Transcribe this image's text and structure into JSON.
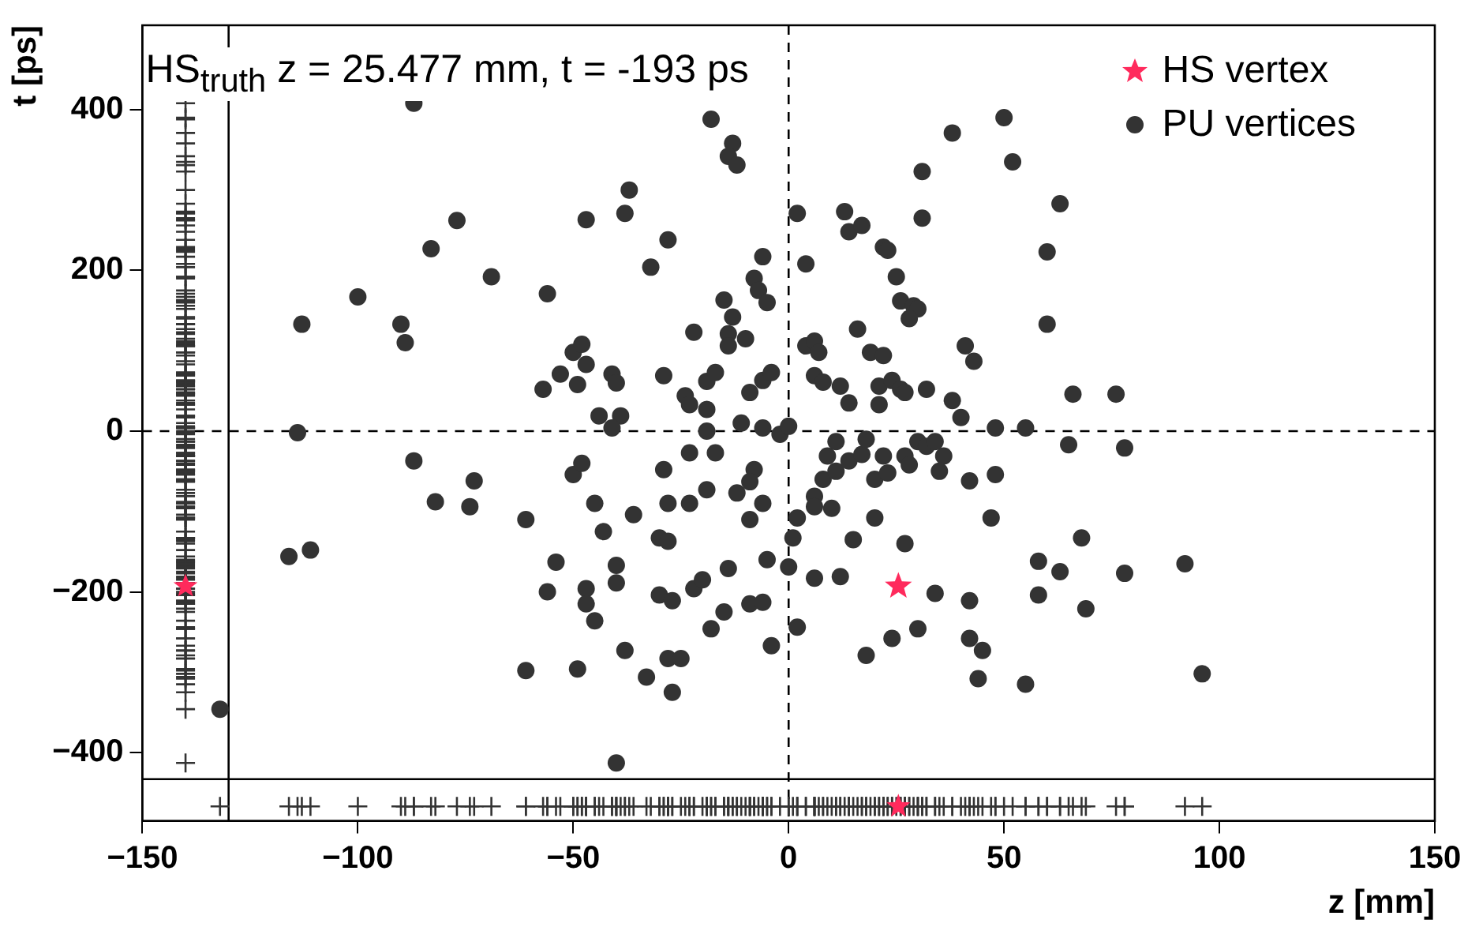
{
  "chart_data": {
    "type": "scatter",
    "xlabel": "z [mm]",
    "ylabel": "t [ps]",
    "annotations": [
      "HS$_{truth}$ z = 25.477 mm, t = -193 ps"
    ],
    "xlim": [
      -150,
      150
    ],
    "xticks": [
      {
        "value": -150,
        "label": "−150"
      },
      {
        "value": -100,
        "label": "−100"
      },
      {
        "value": -50,
        "label": "−50"
      },
      0,
      50,
      100,
      150
    ],
    "ylim": [
      -485,
      505
    ],
    "yticks": [
      {
        "value": -400,
        "label": "−400"
      },
      {
        "value": -200,
        "label": "−200"
      },
      0,
      200,
      400
    ],
    "grid": false,
    "legend": "top right",
    "ref_lines": [
      {
        "axis": "x",
        "value": 0,
        "line_style": "dashed",
        "color": "#000000"
      },
      {
        "axis": "y",
        "value": 0,
        "line_style": "dashed",
        "color": "#000000"
      },
      {
        "axis": "x",
        "value": -130,
        "line_style": "solid",
        "color": "#000000"
      },
      {
        "axis": "y",
        "value": -433,
        "line_style": "solid",
        "color": "#000000"
      }
    ],
    "series": [
      {
        "name": "HS vertex",
        "marker": "star",
        "color": "#ff2a5c",
        "x": [
          25.477
        ],
        "values": [
          -193
        ]
      },
      {
        "name": "PU vertices",
        "marker": "circle",
        "color": "#333333",
        "x": [
          -132,
          -113,
          -100,
          -90,
          -89,
          -87,
          -83,
          -77,
          -69,
          -56,
          -114,
          -87,
          -82,
          -73,
          -74,
          -116,
          -111,
          -61,
          -54,
          -56,
          -61,
          -49,
          -50,
          -48,
          -47,
          -47,
          -50,
          -48,
          -47,
          -53,
          -57,
          -49,
          -18,
          -13,
          -14,
          -12,
          -37,
          -47,
          -38,
          -28,
          -32,
          -6,
          -8,
          -7,
          -5,
          -15,
          -13,
          -22,
          -14,
          -14,
          -10,
          -41,
          -40,
          -29,
          -24,
          -23,
          -19,
          -19,
          -17,
          -9,
          -6,
          -4,
          -44,
          -39,
          -11,
          2,
          4,
          13,
          14,
          17,
          22,
          23,
          25,
          26,
          29,
          30,
          28,
          31,
          31,
          38,
          50,
          52,
          16,
          4,
          6,
          7,
          19,
          22,
          6,
          8,
          12,
          14,
          21,
          24,
          26,
          27,
          21,
          32,
          38,
          40,
          41,
          43,
          63,
          60,
          60,
          66,
          76,
          -41,
          -19,
          -6,
          -2,
          0,
          -23,
          -17,
          -29,
          -8,
          -9,
          -19,
          -12,
          -45,
          -36,
          -28,
          -23,
          -6,
          -9,
          -43,
          -30,
          -28,
          -40,
          -40,
          -45,
          -30,
          -27,
          -22,
          -20,
          -14,
          -5,
          -9,
          -6,
          -15,
          -18,
          -38,
          -28,
          -25,
          -33,
          -27,
          -4,
          -40,
          2,
          1,
          0,
          6,
          6,
          8,
          10,
          9,
          11,
          11,
          14,
          17,
          18,
          20,
          20,
          22,
          23,
          27,
          28,
          30,
          32,
          34,
          36,
          35,
          42,
          48,
          48,
          47,
          15,
          27,
          6,
          12,
          34,
          42,
          2,
          24,
          30,
          42,
          45,
          18,
          44,
          55,
          65,
          78,
          68,
          58,
          63,
          78,
          92,
          58,
          69,
          55,
          96
        ],
        "values": [
          -346,
          133,
          167,
          133,
          110,
          408,
          227,
          262,
          192,
          171,
          -2,
          -37,
          -88,
          -62,
          -94,
          -156,
          -148,
          -110,
          -163,
          -200,
          -298,
          -296,
          -54,
          -40,
          -196,
          -215,
          98,
          108,
          83,
          71,
          52,
          58,
          388,
          358,
          342,
          331,
          300,
          263,
          271,
          238,
          204,
          217,
          190,
          175,
          160,
          163,
          142,
          123,
          121,
          106,
          115,
          71,
          60,
          69,
          44,
          33,
          27,
          62,
          73,
          48,
          63,
          73,
          19,
          19,
          10,
          271,
          208,
          273,
          248,
          256,
          229,
          225,
          192,
          162,
          156,
          152,
          140,
          323,
          265,
          371,
          390,
          335,
          127,
          106,
          112,
          98,
          98,
          94,
          69,
          61,
          56,
          35,
          56,
          63,
          52,
          48,
          33,
          52,
          38,
          17,
          106,
          87,
          283,
          223,
          133,
          46,
          46,
          4,
          0,
          4,
          -4,
          6,
          -27,
          -27,
          -48,
          -48,
          -63,
          -73,
          -77,
          -90,
          -104,
          -90,
          -90,
          -90,
          -110,
          -125,
          -133,
          -137,
          -167,
          -189,
          -236,
          -204,
          -211,
          -196,
          -185,
          -171,
          -160,
          -215,
          -213,
          -225,
          -246,
          -273,
          -283,
          -283,
          -306,
          -325,
          -267,
          -413,
          -108,
          -133,
          -169,
          -81,
          -94,
          -60,
          -96,
          -31,
          -13,
          -50,
          -37,
          -29,
          -10,
          -60,
          -108,
          -31,
          -52,
          -31,
          -42,
          -13,
          -19,
          -13,
          -31,
          -50,
          -62,
          4,
          -54,
          -108,
          -135,
          -140,
          -183,
          -181,
          -202,
          -211,
          -244,
          -258,
          -246,
          -258,
          -273,
          -279,
          -308,
          4,
          -17,
          -21,
          -133,
          -162,
          -175,
          -177,
          -165,
          -204,
          -221,
          -315,
          -302
        ]
      },
      {
        "marker": "cross",
        "color": "#333333",
        "x": [
          -140,
          -140,
          -140,
          -140,
          -140,
          -140,
          -140,
          -140,
          -140,
          -140,
          -140,
          -140,
          -140,
          -140,
          -140,
          -140,
          -140,
          -140,
          -140,
          -140,
          -140,
          -140,
          -140,
          -140,
          -140,
          -140,
          -140,
          -140,
          -140,
          -140,
          -140,
          -140,
          -140,
          -140,
          -140,
          -140,
          -140,
          -140,
          -140,
          -140,
          -140,
          -140,
          -140,
          -140,
          -140,
          -140,
          -140,
          -140,
          -140,
          -140,
          -140,
          -140,
          -140,
          -140,
          -140,
          -140,
          -140,
          -140,
          -140,
          -140,
          -140,
          -140,
          -140,
          -140,
          -140,
          -140,
          -140,
          -140,
          -140,
          -140,
          -140,
          -140,
          -140,
          -140,
          -140,
          -140,
          -140,
          -140,
          -140,
          -140,
          -140,
          -140,
          -140,
          -140,
          -140,
          -140,
          -140,
          -140,
          -140,
          -140,
          -140,
          -140,
          -140,
          -140,
          -140,
          -140,
          -140,
          -140,
          -140,
          -140,
          -140,
          -140,
          -140,
          -140,
          -140,
          -140,
          -140,
          -140,
          -140,
          -140,
          -140,
          -140,
          -140,
          -140,
          -140,
          -140,
          -140,
          -140,
          -140,
          -140,
          -140,
          -140,
          -140,
          -140,
          -140,
          -140,
          -140,
          -140,
          -140,
          -140,
          -140,
          -140,
          -140,
          -140,
          -140,
          -140,
          -140,
          -140,
          -140,
          -140,
          -140,
          -140,
          -140,
          -140,
          -140,
          -140,
          -140,
          -140,
          -140,
          -140,
          -140,
          -140,
          -140,
          -140,
          -140,
          -140,
          -140,
          -140,
          -140,
          -140,
          -140,
          -140,
          -140,
          -140,
          -140,
          -140,
          -140,
          -140,
          -140,
          -140,
          -140,
          -140,
          -140,
          -140,
          -140,
          -140,
          -140,
          -140,
          -140,
          -140,
          -140,
          -140,
          -140,
          -140,
          -140,
          -140,
          -140,
          -140,
          -140,
          -140,
          -140,
          -140,
          -140,
          -140,
          -140,
          -140,
          -140,
          -140,
          -140,
          -140,
          -140
        ],
        "values": [
          -346,
          133,
          167,
          133,
          110,
          408,
          227,
          262,
          192,
          171,
          -2,
          -37,
          -88,
          -62,
          -94,
          -156,
          -148,
          -110,
          -163,
          -200,
          -298,
          -296,
          -54,
          -40,
          -196,
          -215,
          98,
          108,
          83,
          71,
          52,
          58,
          388,
          358,
          342,
          331,
          300,
          263,
          271,
          238,
          204,
          217,
          190,
          175,
          160,
          163,
          142,
          123,
          121,
          106,
          115,
          71,
          60,
          69,
          44,
          33,
          27,
          62,
          73,
          48,
          63,
          73,
          19,
          19,
          10,
          271,
          208,
          273,
          248,
          256,
          229,
          225,
          192,
          162,
          156,
          152,
          140,
          323,
          265,
          371,
          390,
          335,
          127,
          106,
          112,
          98,
          98,
          94,
          69,
          61,
          56,
          35,
          56,
          63,
          52,
          48,
          33,
          52,
          38,
          17,
          106,
          87,
          283,
          223,
          133,
          46,
          46,
          4,
          0,
          4,
          -4,
          6,
          -27,
          -27,
          -48,
          -48,
          -63,
          -73,
          -77,
          -90,
          -104,
          -90,
          -90,
          -90,
          -110,
          -125,
          -133,
          -137,
          -167,
          -189,
          -236,
          -204,
          -211,
          -196,
          -185,
          -171,
          -160,
          -215,
          -213,
          -225,
          -246,
          -273,
          -283,
          -283,
          -306,
          -325,
          -267,
          -413,
          -108,
          -133,
          -169,
          -81,
          -94,
          -60,
          -96,
          -31,
          -13,
          -50,
          -37,
          -29,
          -10,
          -60,
          -108,
          -31,
          -52,
          -31,
          -42,
          -13,
          -19,
          -13,
          -31,
          -50,
          -62,
          4,
          -54,
          -108,
          -135,
          -140,
          -183,
          -181,
          -202,
          -211,
          -244,
          -258,
          -246,
          -258,
          -273,
          -279,
          -308,
          4,
          -17,
          -21,
          -133,
          -162,
          -175,
          -177,
          -165,
          -204,
          -221,
          -315,
          -302
        ]
      },
      {
        "marker": "cross",
        "color": "#333333",
        "x": [
          -132,
          -113,
          -100,
          -90,
          -89,
          -87,
          -83,
          -77,
          -69,
          -56,
          -114,
          -87,
          -82,
          -73,
          -74,
          -116,
          -111,
          -61,
          -54,
          -56,
          -61,
          -49,
          -50,
          -48,
          -47,
          -47,
          -50,
          -48,
          -47,
          -53,
          -57,
          -49,
          -18,
          -13,
          -14,
          -12,
          -37,
          -47,
          -38,
          -28,
          -32,
          -6,
          -8,
          -7,
          -5,
          -15,
          -13,
          -22,
          -14,
          -14,
          -10,
          -41,
          -40,
          -29,
          -24,
          -23,
          -19,
          -19,
          -17,
          -9,
          -6,
          -4,
          -44,
          -39,
          -11,
          2,
          4,
          13,
          14,
          17,
          22,
          23,
          25,
          26,
          29,
          30,
          28,
          31,
          31,
          38,
          50,
          52,
          16,
          4,
          6,
          7,
          19,
          22,
          6,
          8,
          12,
          14,
          21,
          24,
          26,
          27,
          21,
          32,
          38,
          40,
          41,
          43,
          63,
          60,
          60,
          66,
          76,
          -41,
          -19,
          -6,
          -2,
          0,
          -23,
          -17,
          -29,
          -8,
          -9,
          -19,
          -12,
          -45,
          -36,
          -28,
          -23,
          -6,
          -9,
          -43,
          -30,
          -28,
          -40,
          -40,
          -45,
          -30,
          -27,
          -22,
          -20,
          -14,
          -5,
          -9,
          -6,
          -15,
          -18,
          -38,
          -28,
          -25,
          -33,
          -27,
          -4,
          -40,
          2,
          1,
          0,
          6,
          6,
          8,
          10,
          9,
          11,
          11,
          14,
          17,
          18,
          20,
          20,
          22,
          23,
          27,
          28,
          30,
          32,
          34,
          36,
          35,
          42,
          48,
          48,
          47,
          15,
          27,
          6,
          12,
          34,
          42,
          2,
          24,
          30,
          42,
          45,
          18,
          44,
          55,
          65,
          78,
          68,
          58,
          63,
          78,
          92,
          58,
          69,
          55,
          96
        ],
        "values": [
          -467,
          -467,
          -467,
          -467,
          -467,
          -467,
          -467,
          -467,
          -467,
          -467,
          -467,
          -467,
          -467,
          -467,
          -467,
          -467,
          -467,
          -467,
          -467,
          -467,
          -467,
          -467,
          -467,
          -467,
          -467,
          -467,
          -467,
          -467,
          -467,
          -467,
          -467,
          -467,
          -467,
          -467,
          -467,
          -467,
          -467,
          -467,
          -467,
          -467,
          -467,
          -467,
          -467,
          -467,
          -467,
          -467,
          -467,
          -467,
          -467,
          -467,
          -467,
          -467,
          -467,
          -467,
          -467,
          -467,
          -467,
          -467,
          -467,
          -467,
          -467,
          -467,
          -467,
          -467,
          -467,
          -467,
          -467,
          -467,
          -467,
          -467,
          -467,
          -467,
          -467,
          -467,
          -467,
          -467,
          -467,
          -467,
          -467,
          -467,
          -467,
          -467,
          -467,
          -467,
          -467,
          -467,
          -467,
          -467,
          -467,
          -467,
          -467,
          -467,
          -467,
          -467,
          -467,
          -467,
          -467,
          -467,
          -467,
          -467,
          -467,
          -467,
          -467,
          -467,
          -467,
          -467,
          -467,
          -467,
          -467,
          -467,
          -467,
          -467,
          -467,
          -467,
          -467,
          -467,
          -467,
          -467,
          -467,
          -467,
          -467,
          -467,
          -467,
          -467,
          -467,
          -467,
          -467,
          -467,
          -467,
          -467,
          -467,
          -467,
          -467,
          -467,
          -467,
          -467,
          -467,
          -467,
          -467,
          -467,
          -467,
          -467,
          -467,
          -467,
          -467,
          -467,
          -467,
          -467,
          -467,
          -467,
          -467,
          -467,
          -467,
          -467,
          -467,
          -467,
          -467,
          -467,
          -467,
          -467,
          -467,
          -467,
          -467,
          -467,
          -467,
          -467,
          -467,
          -467,
          -467,
          -467,
          -467,
          -467,
          -467,
          -467,
          -467,
          -467,
          -467,
          -467,
          -467,
          -467,
          -467,
          -467,
          -467,
          -467,
          -467,
          -467,
          -467,
          -467,
          -467,
          -467,
          -467,
          -467,
          -467,
          -467,
          -467,
          -467,
          -467,
          -467,
          -467,
          -467,
          -467
        ]
      },
      {
        "marker": "star",
        "color": "#ff2a5c",
        "x": [
          -140,
          25.477
        ],
        "values": [
          -193,
          -467
        ]
      }
    ]
  }
}
